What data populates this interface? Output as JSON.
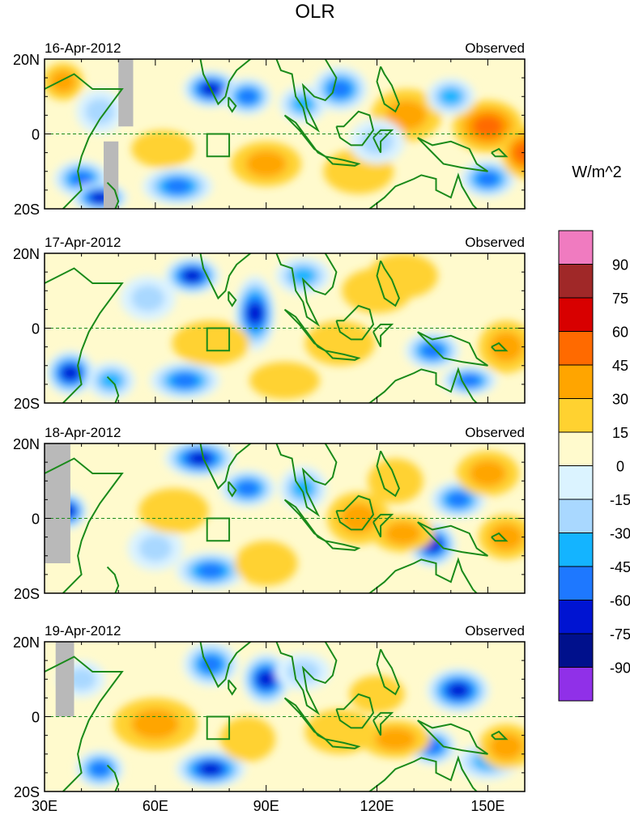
{
  "chart_data": {
    "type": "heatmap",
    "title": "OLR",
    "units_label": "W/m^2",
    "panel_tag": "Observed",
    "panels": [
      {
        "date": "16-Apr-2012"
      },
      {
        "date": "17-Apr-2012"
      },
      {
        "date": "18-Apr-2012"
      },
      {
        "date": "19-Apr-2012"
      }
    ],
    "x_range": [
      30,
      160
    ],
    "y_range": [
      -20,
      20
    ],
    "x_ticks": [
      {
        "value": 30,
        "label": "30E"
      },
      {
        "value": 60,
        "label": "60E"
      },
      {
        "value": 90,
        "label": "90E"
      },
      {
        "value": 120,
        "label": "120E"
      },
      {
        "value": 150,
        "label": "150E"
      }
    ],
    "y_ticks": [
      {
        "value": 20,
        "label": "20N"
      },
      {
        "value": 0,
        "label": "0"
      },
      {
        "value": -20,
        "label": "20S"
      }
    ],
    "box_region": {
      "lon": [
        74,
        80
      ],
      "lat": [
        -6,
        0
      ]
    },
    "colorbar": {
      "levels": [
        {
          "label": "90",
          "color": "#f07bc0"
        },
        {
          "label": "75",
          "color": "#a02828"
        },
        {
          "label": "60",
          "color": "#d80000"
        },
        {
          "label": "45",
          "color": "#ff6a00"
        },
        {
          "label": "30",
          "color": "#ffa500"
        },
        {
          "label": "15",
          "color": "#ffd230"
        },
        {
          "label": "0",
          "color": "#fffacd"
        },
        {
          "label": "-15",
          "color": "#dbf3ff"
        },
        {
          "label": "-30",
          "color": "#a9d8ff"
        },
        {
          "label": "-45",
          "color": "#14b4ff"
        },
        {
          "label": "-60",
          "color": "#1e78ff"
        },
        {
          "label": "-75",
          "color": "#0014d2"
        },
        {
          "label": "-90",
          "color": "#00108c"
        },
        {
          "label": "",
          "color": "#9030e8"
        }
      ]
    }
  }
}
